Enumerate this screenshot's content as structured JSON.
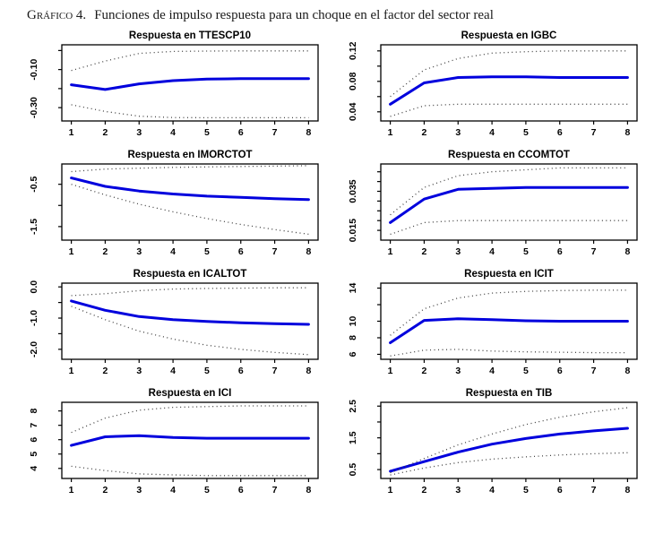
{
  "heading": {
    "label": "Gráfico 4.",
    "text": "Funciones de impulso respuesta para un choque en el factor del sector real"
  },
  "colors": {
    "line": "#0000DD",
    "band": "#404040",
    "axis": "#000000",
    "background": "#FFFFFF"
  },
  "chart_data": [
    {
      "type": "line",
      "title": "Respuesta en TTESCP10",
      "xlabel": "",
      "ylabel": "",
      "x": [
        1,
        2,
        3,
        4,
        5,
        6,
        7,
        8
      ],
      "xticks": [
        1,
        2,
        3,
        4,
        5,
        6,
        7,
        8
      ],
      "ylim": [
        -0.37,
        0.03
      ],
      "yticks": [
        0,
        -0.1,
        -0.2,
        -0.3
      ],
      "ytick_labels": [
        "",
        "-0.10",
        "",
        "-0.30"
      ],
      "series": [
        {
          "name": "respuesta",
          "style": "solid",
          "values": [
            -0.18,
            -0.205,
            -0.175,
            -0.158,
            -0.15,
            -0.148,
            -0.148,
            -0.148
          ]
        },
        {
          "name": "banda-superior",
          "style": "dotted",
          "values": [
            -0.105,
            -0.055,
            -0.015,
            -0.005,
            -0.003,
            -0.002,
            -0.002,
            -0.002
          ]
        },
        {
          "name": "banda-inferior",
          "style": "dotted",
          "values": [
            -0.285,
            -0.32,
            -0.345,
            -0.352,
            -0.353,
            -0.353,
            -0.353,
            -0.353
          ]
        }
      ]
    },
    {
      "type": "line",
      "title": "Respuesta en IGBC",
      "xlabel": "",
      "ylabel": "",
      "x": [
        1,
        2,
        3,
        4,
        5,
        6,
        7,
        8
      ],
      "xticks": [
        1,
        2,
        3,
        4,
        5,
        6,
        7,
        8
      ],
      "ylim": [
        0.028,
        0.128
      ],
      "yticks": [
        0.04,
        0.06,
        0.08,
        0.1,
        0.12
      ],
      "ytick_labels": [
        "0.04",
        "",
        "0.08",
        "",
        "0.12"
      ],
      "series": [
        {
          "name": "respuesta",
          "style": "solid",
          "values": [
            0.05,
            0.078,
            0.085,
            0.086,
            0.086,
            0.085,
            0.085,
            0.085
          ]
        },
        {
          "name": "banda-superior",
          "style": "dotted",
          "values": [
            0.06,
            0.095,
            0.11,
            0.117,
            0.119,
            0.12,
            0.12,
            0.12
          ]
        },
        {
          "name": "banda-inferior",
          "style": "dotted",
          "values": [
            0.034,
            0.048,
            0.05,
            0.05,
            0.05,
            0.05,
            0.05,
            0.05
          ]
        }
      ]
    },
    {
      "type": "line",
      "title": "Respuesta en IMORCTOT",
      "xlabel": "",
      "ylabel": "",
      "x": [
        1,
        2,
        3,
        4,
        5,
        6,
        7,
        8
      ],
      "xticks": [
        1,
        2,
        3,
        4,
        5,
        6,
        7,
        8
      ],
      "ylim": [
        -1.82,
        -0.02
      ],
      "yticks": [
        -0.5,
        -1.0,
        -1.5
      ],
      "ytick_labels": [
        "-0.5",
        "",
        "-1.5"
      ],
      "series": [
        {
          "name": "respuesta",
          "style": "solid",
          "values": [
            -0.35,
            -0.55,
            -0.66,
            -0.73,
            -0.78,
            -0.81,
            -0.84,
            -0.86
          ]
        },
        {
          "name": "banda-superior",
          "style": "dotted",
          "values": [
            -0.2,
            -0.14,
            -0.12,
            -0.1,
            -0.09,
            -0.08,
            -0.07,
            -0.06
          ]
        },
        {
          "name": "banda-inferior",
          "style": "dotted",
          "values": [
            -0.5,
            -0.75,
            -0.97,
            -1.15,
            -1.31,
            -1.45,
            -1.57,
            -1.68
          ]
        }
      ]
    },
    {
      "type": "line",
      "title": "Respuesta en CCOMTOT",
      "xlabel": "",
      "ylabel": "",
      "x": [
        1,
        2,
        3,
        4,
        5,
        6,
        7,
        8
      ],
      "xticks": [
        1,
        2,
        3,
        4,
        5,
        6,
        7,
        8
      ],
      "ylim": [
        0.01,
        0.049
      ],
      "yticks": [
        0.015,
        0.02,
        0.025,
        0.03,
        0.035,
        0.04,
        0.045
      ],
      "ytick_labels": [
        "0.015",
        "",
        "",
        "",
        "0.035",
        "",
        ""
      ],
      "series": [
        {
          "name": "respuesta",
          "style": "solid",
          "values": [
            0.019,
            0.031,
            0.036,
            0.0365,
            0.037,
            0.037,
            0.037,
            0.037
          ]
        },
        {
          "name": "banda-superior",
          "style": "dotted",
          "values": [
            0.023,
            0.037,
            0.043,
            0.045,
            0.046,
            0.047,
            0.047,
            0.047
          ]
        },
        {
          "name": "banda-inferior",
          "style": "dotted",
          "values": [
            0.013,
            0.019,
            0.02,
            0.02,
            0.02,
            0.02,
            0.02,
            0.02
          ]
        }
      ]
    },
    {
      "type": "line",
      "title": "Respuesta en ICALTOT",
      "xlabel": "",
      "ylabel": "",
      "x": [
        1,
        2,
        3,
        4,
        5,
        6,
        7,
        8
      ],
      "xticks": [
        1,
        2,
        3,
        4,
        5,
        6,
        7,
        8
      ],
      "ylim": [
        -2.32,
        0.12
      ],
      "yticks": [
        0.0,
        -0.5,
        -1.0,
        -1.5,
        -2.0
      ],
      "ytick_labels": [
        "0.0",
        "",
        "-1.0",
        "",
        "-2.0"
      ],
      "series": [
        {
          "name": "respuesta",
          "style": "solid",
          "values": [
            -0.45,
            -0.75,
            -0.95,
            -1.05,
            -1.11,
            -1.15,
            -1.18,
            -1.2
          ]
        },
        {
          "name": "banda-superior",
          "style": "dotted",
          "values": [
            -0.28,
            -0.22,
            -0.12,
            -0.07,
            -0.05,
            -0.04,
            -0.03,
            -0.03
          ]
        },
        {
          "name": "banda-inferior",
          "style": "dotted",
          "values": [
            -0.62,
            -1.05,
            -1.42,
            -1.67,
            -1.87,
            -2.0,
            -2.1,
            -2.17
          ]
        }
      ]
    },
    {
      "type": "line",
      "title": "Respuesta en ICIT",
      "xlabel": "",
      "ylabel": "",
      "x": [
        1,
        2,
        3,
        4,
        5,
        6,
        7,
        8
      ],
      "xticks": [
        1,
        2,
        3,
        4,
        5,
        6,
        7,
        8
      ],
      "ylim": [
        5.4,
        14.6
      ],
      "yticks": [
        6,
        8,
        10,
        12,
        14
      ],
      "ytick_labels": [
        "6",
        "8",
        "10",
        "",
        "14"
      ],
      "series": [
        {
          "name": "respuesta",
          "style": "solid",
          "values": [
            7.4,
            10.1,
            10.3,
            10.2,
            10.05,
            10.0,
            10.0,
            10.0
          ]
        },
        {
          "name": "banda-superior",
          "style": "dotted",
          "values": [
            8.3,
            11.5,
            12.8,
            13.4,
            13.6,
            13.7,
            13.75,
            13.75
          ]
        },
        {
          "name": "banda-inferior",
          "style": "dotted",
          "values": [
            5.8,
            6.5,
            6.6,
            6.4,
            6.3,
            6.25,
            6.2,
            6.2
          ]
        }
      ]
    },
    {
      "type": "line",
      "title": "Respuesta en ICI",
      "xlabel": "",
      "ylabel": "",
      "x": [
        1,
        2,
        3,
        4,
        5,
        6,
        7,
        8
      ],
      "xticks": [
        1,
        2,
        3,
        4,
        5,
        6,
        7,
        8
      ],
      "ylim": [
        3.3,
        8.6
      ],
      "yticks": [
        4,
        5,
        6,
        7,
        8
      ],
      "ytick_labels": [
        "4",
        "5",
        "6",
        "7",
        "8"
      ],
      "series": [
        {
          "name": "respuesta",
          "style": "solid",
          "values": [
            5.6,
            6.2,
            6.28,
            6.15,
            6.1,
            6.1,
            6.1,
            6.1
          ]
        },
        {
          "name": "banda-superior",
          "style": "dotted",
          "values": [
            6.5,
            7.5,
            8.05,
            8.25,
            8.3,
            8.35,
            8.35,
            8.35
          ]
        },
        {
          "name": "banda-inferior",
          "style": "dotted",
          "values": [
            4.15,
            3.85,
            3.62,
            3.55,
            3.5,
            3.5,
            3.5,
            3.5
          ]
        }
      ]
    },
    {
      "type": "line",
      "title": "Respuesta en TIB",
      "xlabel": "",
      "ylabel": "",
      "x": [
        1,
        2,
        3,
        4,
        5,
        6,
        7,
        8
      ],
      "xticks": [
        1,
        2,
        3,
        4,
        5,
        6,
        7,
        8
      ],
      "ylim": [
        0.22,
        2.62
      ],
      "yticks": [
        0.5,
        1.0,
        1.5,
        2.0,
        2.5
      ],
      "ytick_labels": [
        "0.5",
        "",
        "1.5",
        "",
        "2.5"
      ],
      "series": [
        {
          "name": "respuesta",
          "style": "solid",
          "values": [
            0.45,
            0.75,
            1.05,
            1.3,
            1.48,
            1.62,
            1.72,
            1.8
          ]
        },
        {
          "name": "banda-superior",
          "style": "dotted",
          "values": [
            0.4,
            0.85,
            1.28,
            1.62,
            1.92,
            2.15,
            2.32,
            2.45
          ]
        },
        {
          "name": "banda-inferior",
          "style": "dotted",
          "values": [
            0.33,
            0.55,
            0.72,
            0.83,
            0.9,
            0.96,
            1.0,
            1.03
          ]
        }
      ]
    }
  ]
}
